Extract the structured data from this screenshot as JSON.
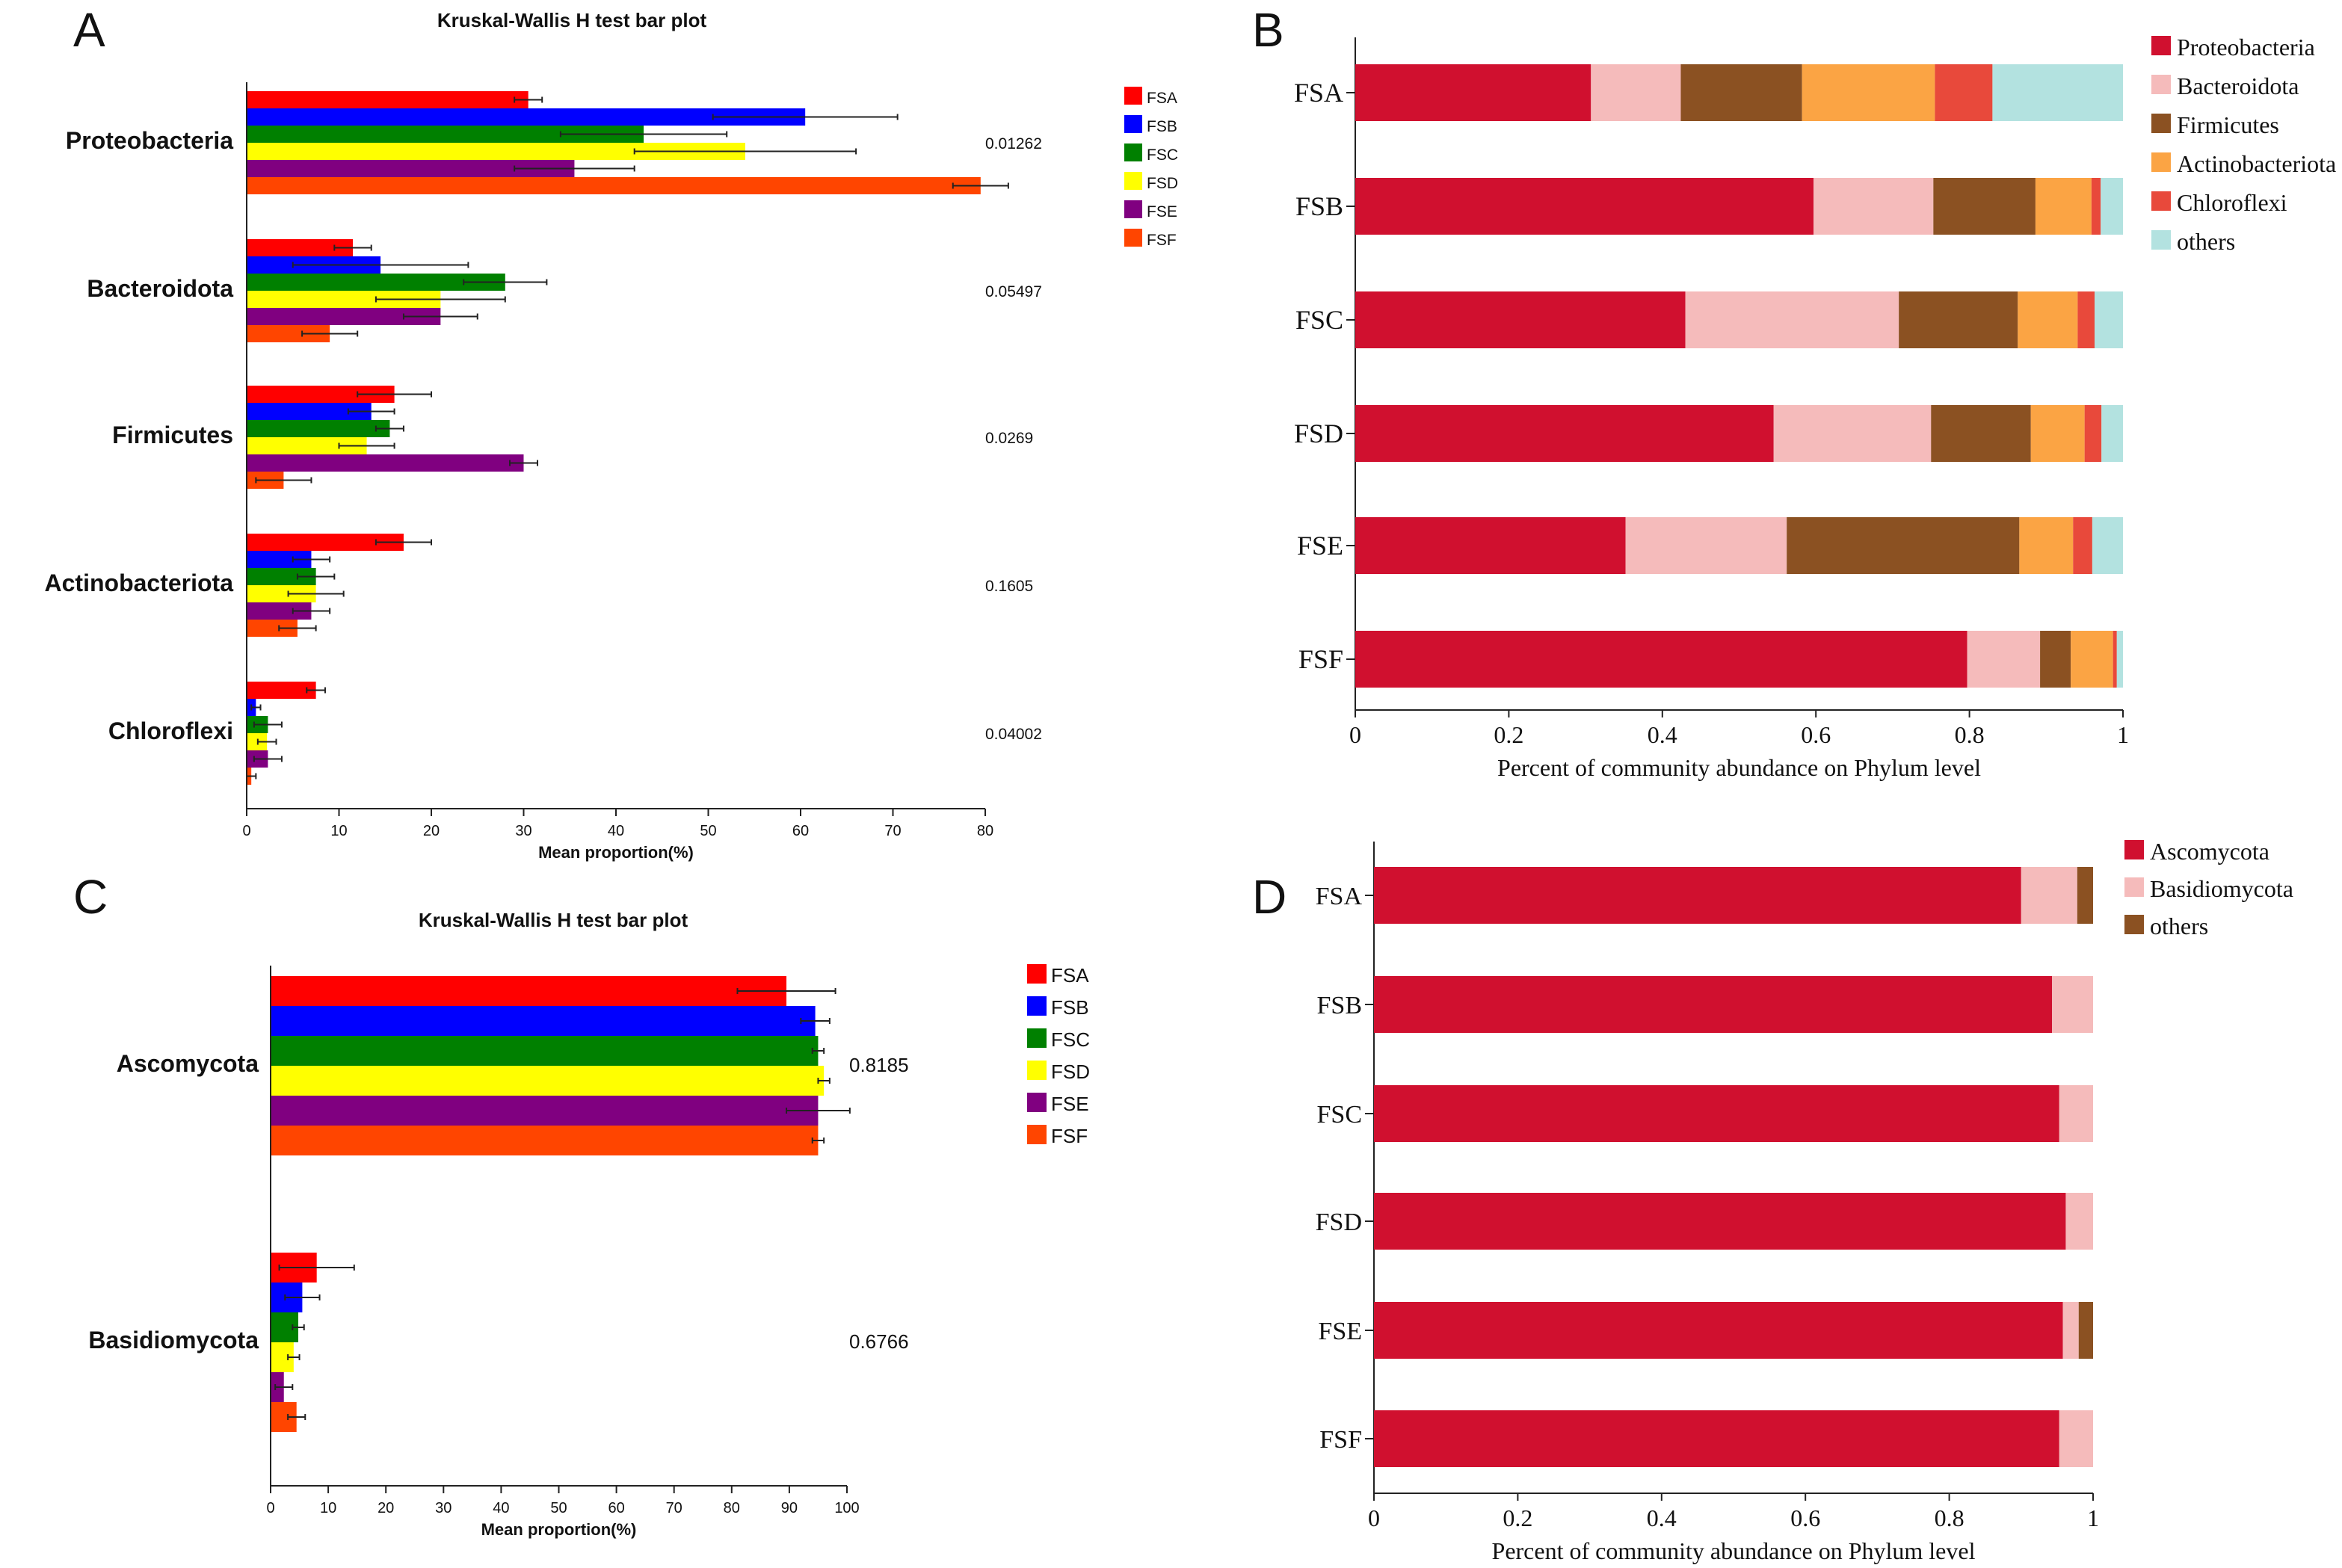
{
  "colors": {
    "FSA": "#ff0000",
    "FSB": "#0000ff",
    "FSC": "#008000",
    "FSD": "#ffff00",
    "FSE": "#800080",
    "FSF": "#ff4500",
    "Proteobacteria": "#d0102f",
    "Bacteroidota": "#f5bbbb",
    "Firmicutes": "#8b5122",
    "Actinobacteriota": "#fba444",
    "Chloroflexi": "#e8493b",
    "others_bact": "#b3e2e0",
    "Ascomycota": "#d0102f",
    "Basidiomycota": "#f5bbbb",
    "others_fungi": "#8b5122"
  },
  "chart_data": [
    {
      "panel": "A",
      "type": "bar",
      "orientation": "horizontal",
      "title": "Kruskal-Wallis H test bar plot",
      "xlabel": "Mean proportion(%)",
      "xlim": [
        0,
        80
      ],
      "xticks": [
        "0",
        "10",
        "20",
        "30",
        "40",
        "50",
        "60",
        "70",
        "80"
      ],
      "categories": [
        "Proteobacteria",
        "Bacteroidota",
        "Firmicutes",
        "Actinobacteriota",
        "Chloroflexi"
      ],
      "p_values": [
        "0.01262",
        "0.05497",
        "0.0269",
        "0.1605",
        "0.04002"
      ],
      "legend": [
        "FSA",
        "FSB",
        "FSC",
        "FSD",
        "FSE",
        "FSF"
      ],
      "legend_position": "top-right",
      "series": [
        {
          "name": "FSA",
          "values": [
            30.5,
            11.5,
            16,
            17,
            7.5
          ],
          "errors": [
            1.5,
            2,
            4,
            3,
            1
          ]
        },
        {
          "name": "FSB",
          "values": [
            60.5,
            14.5,
            13.5,
            7,
            1
          ],
          "errors": [
            10,
            9.5,
            2.5,
            2,
            0.5
          ]
        },
        {
          "name": "FSC",
          "values": [
            43,
            28,
            15.5,
            7.5,
            2.3
          ],
          "errors": [
            9,
            4.5,
            1.5,
            2,
            1.5
          ]
        },
        {
          "name": "FSD",
          "values": [
            54,
            21,
            13,
            7.5,
            2.2
          ],
          "errors": [
            12,
            7,
            3,
            3,
            1
          ]
        },
        {
          "name": "FSE",
          "values": [
            35.5,
            21,
            30,
            7,
            2.3
          ],
          "errors": [
            6.5,
            4,
            1.5,
            2,
            1.5
          ]
        },
        {
          "name": "FSF",
          "values": [
            79.5,
            9,
            4,
            5.5,
            0.5
          ],
          "errors": [
            3,
            3,
            3,
            2,
            0.5
          ]
        }
      ]
    },
    {
      "panel": "B",
      "type": "bar",
      "orientation": "horizontal",
      "stacked": true,
      "xlabel": "Percent of community abundance on Phylum level",
      "xlim": [
        0,
        1
      ],
      "xticks": [
        "0",
        "0.2",
        "0.4",
        "0.6",
        "0.8",
        "1"
      ],
      "categories": [
        "FSA",
        "FSB",
        "FSC",
        "FSD",
        "FSE",
        "FSF"
      ],
      "legend_position": "top-right",
      "series": [
        {
          "name": "Proteobacteria",
          "color_key": "Proteobacteria",
          "values": [
            0.307,
            0.597,
            0.43,
            0.545,
            0.352,
            0.797
          ]
        },
        {
          "name": "Bacteroidota",
          "color_key": "Bacteroidota",
          "values": [
            0.117,
            0.156,
            0.278,
            0.205,
            0.21,
            0.095
          ]
        },
        {
          "name": "Firmicutes",
          "color_key": "Firmicutes",
          "values": [
            0.158,
            0.133,
            0.155,
            0.13,
            0.303,
            0.04
          ]
        },
        {
          "name": "Actinobacteriota",
          "color_key": "Actinobacteriota",
          "values": [
            0.173,
            0.073,
            0.078,
            0.07,
            0.07,
            0.055
          ]
        },
        {
          "name": "Chloroflexi",
          "color_key": "Chloroflexi",
          "values": [
            0.075,
            0.012,
            0.022,
            0.022,
            0.025,
            0.005
          ]
        },
        {
          "name": "others",
          "color_key": "others_bact",
          "values": [
            0.17,
            0.029,
            0.037,
            0.028,
            0.04,
            0.008
          ]
        }
      ]
    },
    {
      "panel": "C",
      "type": "bar",
      "orientation": "horizontal",
      "title": "Kruskal-Wallis H test bar plot",
      "xlabel": "Mean proportion(%)",
      "xlim": [
        0,
        100
      ],
      "xticks": [
        "0",
        "10",
        "20",
        "30",
        "40",
        "50",
        "60",
        "70",
        "80",
        "90",
        "100"
      ],
      "categories": [
        "Ascomycota",
        "Basidiomycota"
      ],
      "p_values": [
        "0.8185",
        "0.6766"
      ],
      "legend": [
        "FSA",
        "FSB",
        "FSC",
        "FSD",
        "FSE",
        "FSF"
      ],
      "legend_position": "top-right",
      "series": [
        {
          "name": "FSA",
          "values": [
            89.5,
            8
          ],
          "errors": [
            8.5,
            6.5
          ]
        },
        {
          "name": "FSB",
          "values": [
            94.5,
            5.5
          ],
          "errors": [
            2.5,
            3
          ]
        },
        {
          "name": "FSC",
          "values": [
            95,
            4.8
          ],
          "errors": [
            1,
            1
          ]
        },
        {
          "name": "FSD",
          "values": [
            96,
            4
          ],
          "errors": [
            1,
            1
          ]
        },
        {
          "name": "FSE",
          "values": [
            95,
            2.3
          ],
          "errors": [
            5.5,
            1.5
          ]
        },
        {
          "name": "FSF",
          "values": [
            95,
            4.5
          ],
          "errors": [
            1,
            1.5
          ]
        }
      ]
    },
    {
      "panel": "D",
      "type": "bar",
      "orientation": "horizontal",
      "stacked": true,
      "xlabel": "Percent of community abundance on Phylum level",
      "xlim": [
        0,
        1
      ],
      "xticks": [
        "0",
        "0.2",
        "0.4",
        "0.6",
        "0.8",
        "1"
      ],
      "categories": [
        "FSA",
        "FSB",
        "FSC",
        "FSD",
        "FSE",
        "FSF"
      ],
      "legend_position": "top-right",
      "series": [
        {
          "name": "Ascomycota",
          "color_key": "Ascomycota",
          "values": [
            0.9,
            0.943,
            0.953,
            0.962,
            0.958,
            0.953
          ]
        },
        {
          "name": "Basidiomycota",
          "color_key": "Basidiomycota",
          "values": [
            0.078,
            0.057,
            0.047,
            0.038,
            0.022,
            0.047
          ]
        },
        {
          "name": "others",
          "color_key": "others_fungi",
          "values": [
            0.022,
            0.0,
            0.0,
            0.0,
            0.02,
            0.0
          ]
        }
      ]
    }
  ]
}
